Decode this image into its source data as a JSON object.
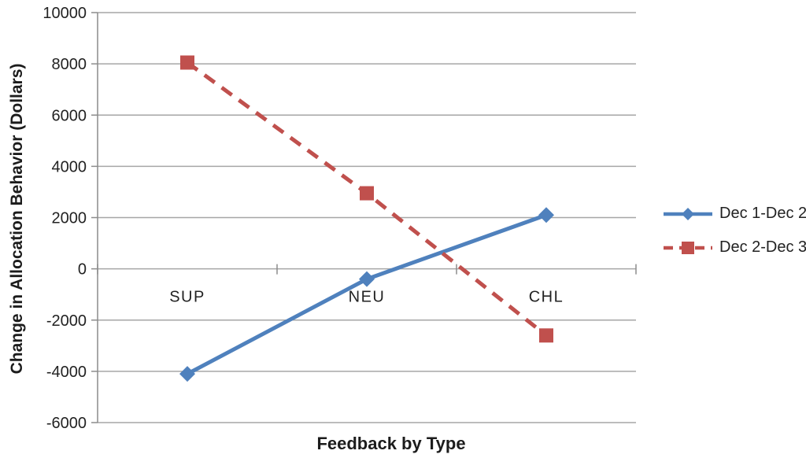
{
  "chart_data": {
    "type": "line",
    "title": "",
    "xlabel": "Feedback by Type",
    "ylabel": "Change in Allocation Behavior (Dollars)",
    "categories": [
      "SUP",
      "NEU",
      "CHL"
    ],
    "series": [
      {
        "name": "Dec 1-Dec 2",
        "values": [
          -4100,
          -400,
          2100
        ],
        "color": "#4F81BD",
        "marker": "diamond",
        "dash": "solid"
      },
      {
        "name": "Dec 2-Dec 3",
        "values": [
          8050,
          2950,
          -2600
        ],
        "color": "#C0504D",
        "marker": "square",
        "dash": "dashed"
      }
    ],
    "ylim": [
      -6000,
      10000
    ],
    "ytick_step": 2000,
    "yticks": [
      -6000,
      -4000,
      -2000,
      0,
      2000,
      4000,
      6000,
      8000,
      10000
    ],
    "grid": "horizontal",
    "legend_position": "right"
  },
  "colors": {
    "grid": "#A6A6A6",
    "axis": "#8C8C8C",
    "text": "#222222",
    "background": "#FFFFFF"
  }
}
